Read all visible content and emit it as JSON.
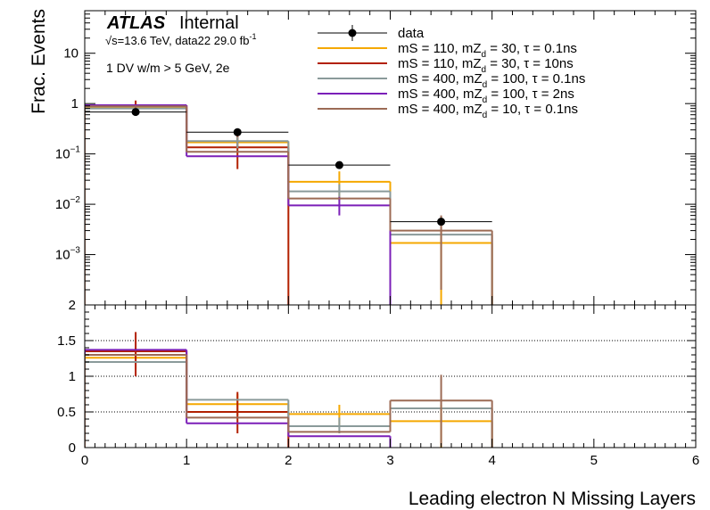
{
  "chart_data": [
    {
      "type": "step",
      "panel": "main",
      "ylabel": "Frac. Events",
      "yscale": "log",
      "ylim": [
        0.0001,
        70
      ],
      "xlim": [
        0,
        6
      ],
      "yticks": [
        {
          "v": 0.001,
          "base": "10",
          "exp": "−3"
        },
        {
          "v": 0.01,
          "base": "10",
          "exp": "−2"
        },
        {
          "v": 0.1,
          "base": "10",
          "exp": "−1"
        },
        {
          "v": 1,
          "base": "1",
          "exp": ""
        },
        {
          "v": 10,
          "base": "10",
          "exp": ""
        }
      ],
      "bins": [
        [
          0,
          1
        ],
        [
          1,
          2
        ],
        [
          2,
          3
        ],
        [
          3,
          4
        ],
        [
          4,
          5
        ],
        [
          5,
          6
        ]
      ],
      "data": {
        "name": "data",
        "values": [
          0.68,
          0.27,
          0.06,
          0.0045,
          null,
          null
        ],
        "yerr_lo": [
          0.67,
          0.265,
          0.059,
          0.0044,
          null,
          null
        ],
        "yerr_hi": [
          0.69,
          0.275,
          0.061,
          0.0046,
          null,
          null
        ]
      },
      "series": [
        {
          "name": "mS = 110, mZd = 30, τ = 0.1ns",
          "color": "#f5a800",
          "values": [
            0.86,
            0.17,
            0.028,
            0.0017,
            0,
            0
          ],
          "err": [
            [
              0.7,
              1.05
            ],
            [
              0.13,
              0.22
            ],
            [
              0.012,
              0.045
            ],
            [
              0,
              0.003
            ],
            null,
            null
          ]
        },
        {
          "name": "mS = 110, mZd = 30, τ = 10ns",
          "color": "#b22000",
          "values": [
            0.92,
            0.135,
            0,
            0,
            0,
            0
          ],
          "err": [
            [
              0.6,
              1.15
            ],
            [
              0.05,
              0.25
            ],
            null,
            null,
            null,
            null
          ]
        },
        {
          "name": "mS = 400, mZd = 100, τ = 0.1ns",
          "color": "#8a9a9a",
          "values": [
            0.8,
            0.18,
            0.018,
            0.0025,
            0,
            0
          ],
          "err": [
            null,
            [
              0.13,
              0.22
            ],
            [
              0.012,
              0.025
            ],
            null,
            null,
            null
          ]
        },
        {
          "name": "mS = 400, mZd = 100, τ = 2ns",
          "color": "#7b1fb8",
          "values": [
            0.93,
            0.09,
            0.0095,
            0,
            0,
            0
          ],
          "err": [
            null,
            null,
            [
              0.006,
              0.014
            ],
            null,
            null,
            null
          ]
        },
        {
          "name": "mS = 400, mZd = 10, τ = 0.1ns",
          "color": "#9c6b55",
          "values": [
            0.88,
            0.11,
            0.013,
            0.003,
            0,
            0
          ],
          "err": [
            null,
            null,
            null,
            [
              0.0002,
              0.006
            ],
            null,
            null
          ]
        }
      ]
    },
    {
      "type": "step",
      "panel": "ratio",
      "xlabel": "Leading electron N Missing Layers",
      "ylim": [
        0,
        2
      ],
      "xlim": [
        0,
        6
      ],
      "yticks": [
        0,
        0.5,
        1,
        1.5,
        2
      ],
      "ytick_labels": [
        "0",
        "0.5",
        "1",
        "1.5",
        "2"
      ],
      "xticks": [
        0,
        1,
        2,
        3,
        4,
        5,
        6
      ],
      "xtick_labels": [
        "0",
        "1",
        "2",
        "3",
        "4",
        "5",
        "6"
      ],
      "gridlines_y": [
        0.5,
        1,
        1.5
      ],
      "series": [
        {
          "name": "mS = 110, mZd = 30, τ = 0.1ns",
          "color": "#f5a800",
          "values": [
            1.26,
            0.61,
            0.47,
            0.37,
            0,
            0
          ],
          "err": [
            [
              1.1,
              1.4
            ],
            [
              0.45,
              0.75
            ],
            [
              0.3,
              0.6
            ],
            [
              0,
              0.6
            ],
            null,
            null
          ]
        },
        {
          "name": "mS = 110, mZd = 30, τ = 10ns",
          "color": "#b22000",
          "values": [
            1.35,
            0.5,
            0,
            0,
            0,
            0
          ],
          "err": [
            [
              1.0,
              1.62
            ],
            [
              0.2,
              0.78
            ],
            null,
            null,
            null,
            null
          ]
        },
        {
          "name": "mS = 400, mZd = 100, τ = 0.1ns",
          "color": "#8a9a9a",
          "values": [
            1.2,
            0.67,
            0.3,
            0.55,
            0,
            0
          ],
          "err": [
            null,
            null,
            [
              0.2,
              0.42
            ],
            null,
            null,
            null
          ]
        },
        {
          "name": "mS = 400, mZd = 100, τ = 2ns",
          "color": "#7b1fb8",
          "values": [
            1.37,
            0.34,
            0.16,
            0,
            0,
            0
          ],
          "err": [
            null,
            null,
            null,
            null,
            null,
            null
          ]
        },
        {
          "name": "mS = 400, mZd = 10, τ = 0.1ns",
          "color": "#9c6b55",
          "values": [
            1.3,
            0.42,
            0.22,
            0.66,
            0,
            0
          ],
          "err": [
            null,
            null,
            null,
            [
              0.02,
              1.02
            ],
            null,
            null
          ]
        }
      ]
    }
  ],
  "labels": {
    "atlas": "ATLAS",
    "internal": "Internal",
    "sqrt": "√s=13.6 TeV, data22 29.0 fb",
    "sqrt_sup": "-1",
    "selection": "1 DV w/m > 5 GeV, 2e"
  },
  "legend": {
    "placement": "top-right",
    "entries": [
      {
        "text": "data",
        "main": "data",
        "sub": "",
        "rest": "",
        "kind": "marker",
        "color": "#000000"
      },
      {
        "text": "mS = 110, mZd = 30, τ = 0.1ns",
        "main": "mS = 110, mZ",
        "sub": "d",
        "rest": " = 30, τ = 0.1ns",
        "kind": "line",
        "color": "#f5a800"
      },
      {
        "text": "mS = 110, mZd = 30, τ = 10ns",
        "main": "mS = 110, mZ",
        "sub": "d",
        "rest": " = 30, τ = 10ns",
        "kind": "line",
        "color": "#b22000"
      },
      {
        "text": "mS = 400, mZd = 100, τ = 0.1ns",
        "main": "mS = 400, mZ",
        "sub": "d",
        "rest": " = 100, τ = 0.1ns",
        "kind": "line",
        "color": "#8a9a9a"
      },
      {
        "text": "mS = 400, mZd = 100, τ = 2ns",
        "main": "mS = 400, mZ",
        "sub": "d",
        "rest": " = 100, τ = 2ns",
        "kind": "line",
        "color": "#7b1fb8"
      },
      {
        "text": "mS = 400, mZd = 10, τ = 0.1ns",
        "main": "mS = 400, mZ",
        "sub": "d",
        "rest": " = 10, τ = 0.1ns",
        "kind": "line",
        "color": "#9c6b55"
      }
    ]
  }
}
